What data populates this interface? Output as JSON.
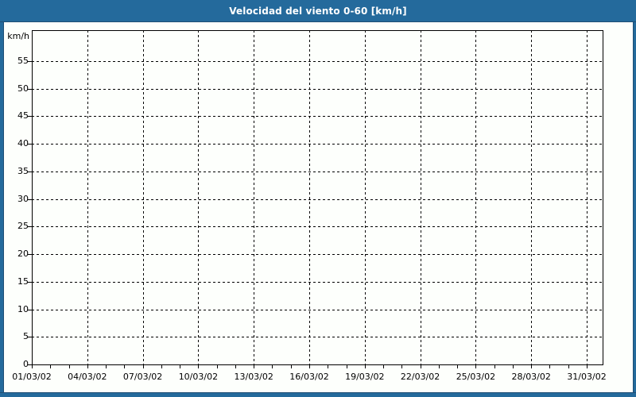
{
  "window": {
    "title_bar": {
      "title": "Velocidad del viento 0-60 [km/h]"
    },
    "colors": {
      "frame_blue": "#246a9c",
      "frame_dark_line": "#1f4e75",
      "background": "#fdfffc",
      "title_text": "#ffffff",
      "grid_and_axis": "#000000"
    }
  },
  "chart_data": {
    "type": "line",
    "title": "Velocidad del viento 0-60 [km/h]",
    "xlabel": "",
    "ylabel": "km/h",
    "ylim": [
      0,
      60
    ],
    "y_ticks": [
      0,
      5,
      10,
      15,
      20,
      25,
      30,
      35,
      40,
      45,
      50,
      55
    ],
    "y_tick_interval": 5,
    "x_tick_labels": [
      "01/03/02",
      "04/03/02",
      "07/03/02",
      "10/03/02",
      "13/03/02",
      "16/03/02",
      "19/03/02",
      "22/03/02",
      "25/03/02",
      "28/03/02",
      "31/03/02"
    ],
    "x_major_interval_days": 3,
    "x_minor_interval_days": 1,
    "x_range_days": 30,
    "grid": {
      "style": "dashed",
      "color": "#000000"
    },
    "legend_position": "none",
    "series": []
  }
}
